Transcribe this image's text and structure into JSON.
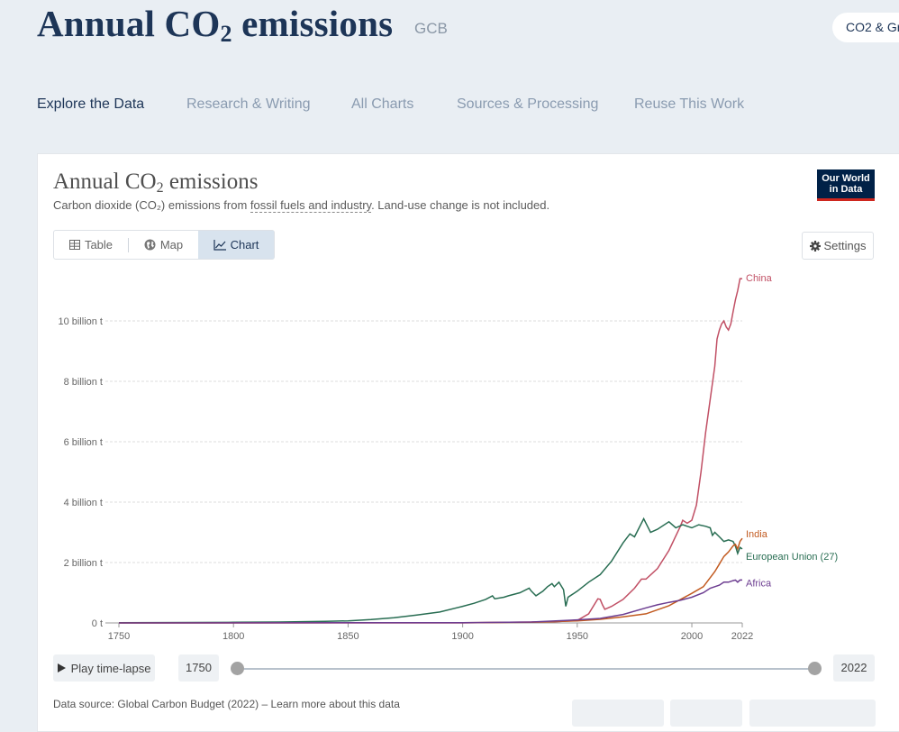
{
  "page": {
    "title_main": "Annual CO",
    "title_sub": "2",
    "title_rest": " emissions",
    "source_tag": "GCB",
    "topic_pill": "CO2 & Gr"
  },
  "tabs": [
    "Explore the Data",
    "Research & Writing",
    "All Charts",
    "Sources & Processing",
    "Reuse This Work"
  ],
  "chart_header": {
    "title_main": "Annual CO",
    "title_sub": "2",
    "title_rest": " emissions",
    "subtitle_pre": "Carbon dioxide (CO₂) emissions from ",
    "subtitle_link": "fossil fuels and industry",
    "subtitle_post": ". Land-use change is not included.",
    "logo_line1": "Our World",
    "logo_line2": "in Data"
  },
  "view_toggle": {
    "table": "Table",
    "map": "Map",
    "chart": "Chart"
  },
  "settings_label": "Settings",
  "timeline": {
    "play_label": "Play time-lapse",
    "start_year": "1750",
    "end_year": "2022"
  },
  "footer": {
    "data_source": "Data source: Global Carbon Budget (2022) – Learn more about this data"
  },
  "chart_data": {
    "type": "line",
    "title": "Annual CO₂ emissions",
    "xlim": [
      1750,
      2022
    ],
    "ylim": [
      0,
      11.5
    ],
    "y_ticks": [
      0,
      2,
      4,
      6,
      8,
      10
    ],
    "y_tick_labels": [
      "0 t",
      "2 billion t",
      "4 billion t",
      "6 billion t",
      "8 billion t",
      "10 billion t"
    ],
    "x_ticks": [
      1750,
      1800,
      1850,
      1900,
      1950,
      2000,
      2022
    ],
    "grid": "horizontal",
    "legend": "end-of-line labels",
    "series": [
      {
        "name": "China",
        "color": "#c15065",
        "points": [
          [
            1750,
            0
          ],
          [
            1900,
            0
          ],
          [
            1920,
            0.02
          ],
          [
            1940,
            0.04
          ],
          [
            1950,
            0.08
          ],
          [
            1955,
            0.3
          ],
          [
            1959,
            0.8
          ],
          [
            1960,
            0.78
          ],
          [
            1961,
            0.6
          ],
          [
            1962,
            0.45
          ],
          [
            1965,
            0.55
          ],
          [
            1970,
            0.78
          ],
          [
            1975,
            1.15
          ],
          [
            1978,
            1.45
          ],
          [
            1980,
            1.45
          ],
          [
            1985,
            1.8
          ],
          [
            1990,
            2.4
          ],
          [
            1995,
            3.2
          ],
          [
            1996,
            3.4
          ],
          [
            1998,
            3.3
          ],
          [
            2000,
            3.4
          ],
          [
            2002,
            3.9
          ],
          [
            2004,
            5.0
          ],
          [
            2006,
            6.3
          ],
          [
            2008,
            7.4
          ],
          [
            2010,
            8.5
          ],
          [
            2011,
            9.4
          ],
          [
            2012,
            9.7
          ],
          [
            2013,
            9.9
          ],
          [
            2014,
            10.0
          ],
          [
            2015,
            9.8
          ],
          [
            2016,
            9.7
          ],
          [
            2017,
            9.9
          ],
          [
            2018,
            10.3
          ],
          [
            2019,
            10.7
          ],
          [
            2020,
            11.0
          ],
          [
            2021,
            11.4
          ],
          [
            2022,
            11.4
          ]
        ]
      },
      {
        "name": "European Union (27)",
        "color": "#286d52",
        "points": [
          [
            1750,
            0.01
          ],
          [
            1800,
            0.02
          ],
          [
            1820,
            0.03
          ],
          [
            1840,
            0.05
          ],
          [
            1850,
            0.07
          ],
          [
            1860,
            0.11
          ],
          [
            1870,
            0.17
          ],
          [
            1880,
            0.26
          ],
          [
            1890,
            0.36
          ],
          [
            1900,
            0.55
          ],
          [
            1905,
            0.65
          ],
          [
            1910,
            0.78
          ],
          [
            1913,
            0.9
          ],
          [
            1914,
            0.8
          ],
          [
            1918,
            0.85
          ],
          [
            1920,
            0.9
          ],
          [
            1925,
            1.0
          ],
          [
            1929,
            1.15
          ],
          [
            1930,
            1.05
          ],
          [
            1932,
            0.9
          ],
          [
            1935,
            1.05
          ],
          [
            1937,
            1.2
          ],
          [
            1939,
            1.3
          ],
          [
            1940,
            1.2
          ],
          [
            1942,
            1.35
          ],
          [
            1944,
            1.1
          ],
          [
            1945,
            0.55
          ],
          [
            1946,
            0.85
          ],
          [
            1950,
            1.05
          ],
          [
            1955,
            1.35
          ],
          [
            1960,
            1.6
          ],
          [
            1965,
            2.05
          ],
          [
            1970,
            2.65
          ],
          [
            1973,
            2.95
          ],
          [
            1975,
            2.85
          ],
          [
            1979,
            3.45
          ],
          [
            1980,
            3.3
          ],
          [
            1982,
            3.0
          ],
          [
            1985,
            3.1
          ],
          [
            1990,
            3.35
          ],
          [
            1993,
            3.15
          ],
          [
            1996,
            3.25
          ],
          [
            2000,
            3.15
          ],
          [
            2003,
            3.25
          ],
          [
            2006,
            3.2
          ],
          [
            2008,
            3.15
          ],
          [
            2009,
            2.9
          ],
          [
            2010,
            3.0
          ],
          [
            2012,
            2.85
          ],
          [
            2014,
            2.7
          ],
          [
            2016,
            2.75
          ],
          [
            2018,
            2.7
          ],
          [
            2019,
            2.55
          ],
          [
            2020,
            2.3
          ],
          [
            2021,
            2.5
          ],
          [
            2022,
            2.45
          ]
        ]
      },
      {
        "name": "India",
        "color": "#c25b21",
        "points": [
          [
            1750,
            0
          ],
          [
            1900,
            0.01
          ],
          [
            1930,
            0.02
          ],
          [
            1950,
            0.07
          ],
          [
            1960,
            0.12
          ],
          [
            1970,
            0.2
          ],
          [
            1980,
            0.3
          ],
          [
            1990,
            0.57
          ],
          [
            2000,
            0.98
          ],
          [
            2005,
            1.2
          ],
          [
            2008,
            1.5
          ],
          [
            2010,
            1.7
          ],
          [
            2012,
            1.95
          ],
          [
            2014,
            2.2
          ],
          [
            2016,
            2.35
          ],
          [
            2018,
            2.55
          ],
          [
            2019,
            2.6
          ],
          [
            2020,
            2.45
          ],
          [
            2021,
            2.7
          ],
          [
            2022,
            2.8
          ]
        ]
      },
      {
        "name": "Africa",
        "color": "#6d3e91",
        "points": [
          [
            1750,
            0
          ],
          [
            1900,
            0.01
          ],
          [
            1930,
            0.03
          ],
          [
            1950,
            0.1
          ],
          [
            1960,
            0.15
          ],
          [
            1970,
            0.28
          ],
          [
            1980,
            0.5
          ],
          [
            1985,
            0.6
          ],
          [
            1990,
            0.68
          ],
          [
            1995,
            0.75
          ],
          [
            2000,
            0.85
          ],
          [
            2005,
            1.0
          ],
          [
            2008,
            1.15
          ],
          [
            2010,
            1.2
          ],
          [
            2012,
            1.25
          ],
          [
            2014,
            1.35
          ],
          [
            2016,
            1.35
          ],
          [
            2018,
            1.4
          ],
          [
            2019,
            1.42
          ],
          [
            2020,
            1.35
          ],
          [
            2021,
            1.42
          ],
          [
            2022,
            1.42
          ]
        ]
      }
    ]
  }
}
